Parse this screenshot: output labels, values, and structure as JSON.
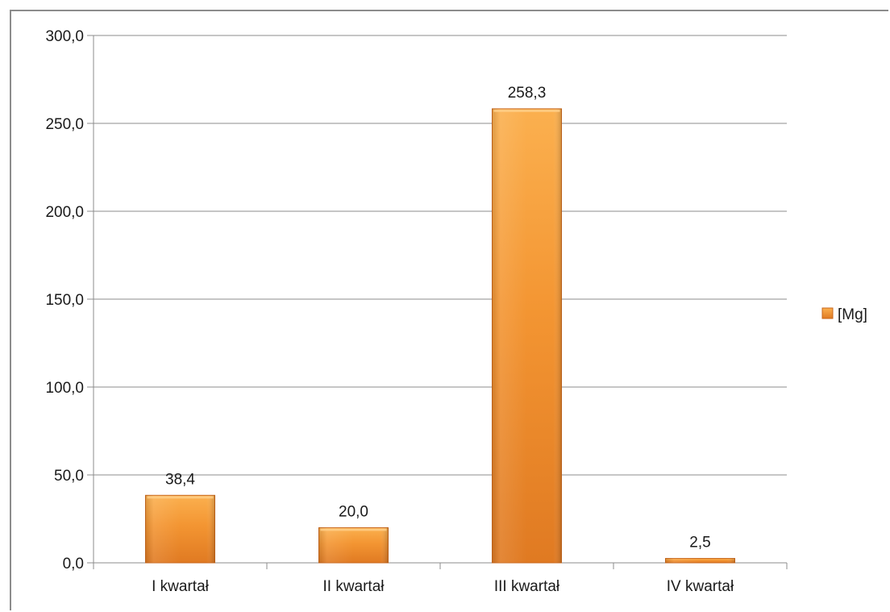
{
  "chart_data": {
    "type": "bar",
    "categories": [
      "I kwartał",
      "II kwartał",
      "III kwartał",
      "IV kwartał"
    ],
    "series": [
      {
        "name": "[Mg]",
        "values": [
          38.4,
          20.0,
          258.3,
          2.5
        ],
        "value_labels": [
          "38,4",
          "20,0",
          "258,3",
          "2,5"
        ]
      }
    ],
    "ylim": [
      0,
      300
    ],
    "yticks": [
      0,
      50,
      100,
      150,
      200,
      250,
      300
    ],
    "ytick_labels": [
      "0,0",
      "50,0",
      "100,0",
      "150,0",
      "200,0",
      "250,0",
      "300,0"
    ],
    "grid": true,
    "legend_position": "right",
    "bar_color": "#f0922e",
    "bar_edge_color": "#c8661a",
    "grid_color": "#8c8c8c"
  }
}
